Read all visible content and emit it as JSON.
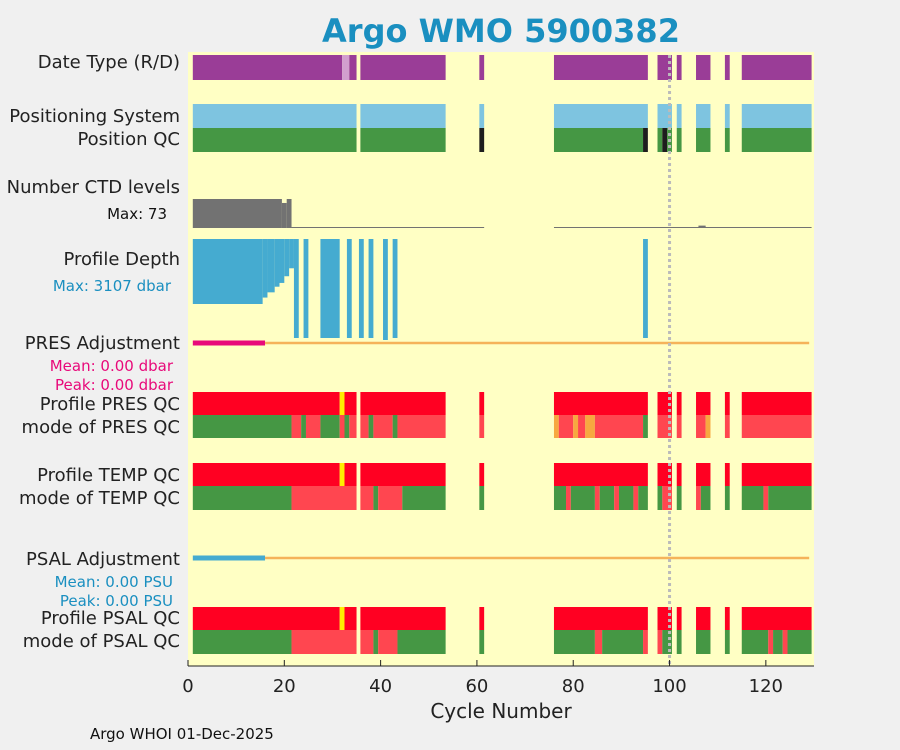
{
  "page_title": "Argo WMO 5900382",
  "footer": "Argo WHOI 01-Dec-2025",
  "colors": {
    "background": "#ffffc4",
    "purple": "#9a3d97",
    "lightpurple": "#d29fce",
    "lightblue": "#7ec4e0",
    "green": "#459744",
    "black": "#1e1e1e",
    "gray": "#727272",
    "blue": "#45abd0",
    "magenta": "#e8097a",
    "orange": "#f5b35a",
    "red": "#ff0022",
    "lightred": "#ff4650",
    "yellow": "#ffee00",
    "amber": "#f7a840",
    "title": "#1a8fc0",
    "dotted": "#bbbbbb"
  },
  "labels": {
    "date_type": "Date Type (R/D)",
    "positioning_system": "Positioning System",
    "position_qc": "Position QC",
    "number_ctd": "Number CTD levels",
    "ctd_max": "Max: 73",
    "profile_depth": "Profile Depth",
    "depth_max": "Max: 3107 dbar",
    "pres_adj": "PRES Adjustment",
    "pres_mean": "Mean: 0.00 dbar",
    "pres_peak": "Peak: 0.00 dbar",
    "profile_pres_qc": "Profile PRES QC",
    "mode_pres_qc": "mode of PRES QC",
    "profile_temp_qc": "Profile TEMP QC",
    "mode_temp_qc": "mode of TEMP QC",
    "psal_adj": "PSAL Adjustment",
    "psal_mean": "Mean: 0.00 PSU",
    "psal_peak": "Peak: 0.00 PSU",
    "profile_psal_qc": "Profile PSAL QC",
    "mode_psal_qc": "mode of PSAL QC"
  },
  "chart_data": {
    "type": "heatmap",
    "title": "Argo WMO 5900382",
    "xlabel": "Cycle Number",
    "xlim": [
      0,
      130
    ],
    "xticks": [
      0,
      20,
      40,
      60,
      80,
      100,
      120
    ],
    "marker_cycle": 100,
    "ctd_levels_max": 73,
    "profile_depth_max_dbar": 3107,
    "pres_adjustment": {
      "mean": 0.0,
      "peak": 0.0,
      "unit": "dbar"
    },
    "psal_adjustment": {
      "mean": 0.0,
      "peak": 0.0,
      "unit": "PSU"
    },
    "segments": {
      "date_type": [
        [
          1,
          32,
          "purple"
        ],
        [
          32,
          33.5,
          "lightpurple"
        ],
        [
          33.5,
          35,
          "purple"
        ],
        [
          35.8,
          53.5,
          "purple"
        ],
        [
          60.5,
          61.5,
          "purple"
        ],
        [
          76,
          95.5,
          "purple"
        ],
        [
          97.5,
          100.5,
          "purple"
        ],
        [
          101.5,
          102.5,
          "purple"
        ],
        [
          105.5,
          108.5,
          "purple"
        ],
        [
          111.5,
          112.5,
          "purple"
        ],
        [
          115,
          129.5,
          "purple"
        ]
      ],
      "positioning_system": [
        [
          1,
          35,
          "lightblue"
        ],
        [
          35.8,
          53.5,
          "lightblue"
        ],
        [
          60.5,
          61.5,
          "lightblue"
        ],
        [
          76,
          95.5,
          "lightblue"
        ],
        [
          97.5,
          100.5,
          "lightblue"
        ],
        [
          101.5,
          102.5,
          "lightblue"
        ],
        [
          105.5,
          108.5,
          "lightblue"
        ],
        [
          111.5,
          112.5,
          "lightblue"
        ],
        [
          115,
          129.5,
          "lightblue"
        ]
      ],
      "position_qc": [
        [
          1,
          35,
          "green"
        ],
        [
          35.8,
          53.5,
          "green"
        ],
        [
          60.5,
          61.5,
          "black"
        ],
        [
          76,
          94.5,
          "green"
        ],
        [
          94.5,
          95.5,
          "black"
        ],
        [
          97.5,
          98.5,
          "green"
        ],
        [
          98.5,
          99.5,
          "black"
        ],
        [
          99.5,
          100.5,
          "green"
        ],
        [
          101.5,
          102.5,
          "green"
        ],
        [
          105.5,
          108.5,
          "green"
        ],
        [
          111.5,
          112.5,
          "green"
        ],
        [
          115,
          129.5,
          "green"
        ]
      ],
      "profile_pres_qc": [
        [
          1,
          31.5,
          "red"
        ],
        [
          31.5,
          32.5,
          "yellow"
        ],
        [
          32.5,
          35,
          "red"
        ],
        [
          35.8,
          53.5,
          "red"
        ],
        [
          60.5,
          61.5,
          "red"
        ],
        [
          76,
          95.5,
          "red"
        ],
        [
          97.5,
          100.5,
          "red"
        ],
        [
          101.5,
          102.5,
          "red"
        ],
        [
          105.5,
          108.5,
          "red"
        ],
        [
          111.5,
          112.5,
          "red"
        ],
        [
          115,
          129.5,
          "red"
        ]
      ],
      "mode_pres_qc": [
        [
          1,
          21.5,
          "green"
        ],
        [
          21.5,
          23.5,
          "lightred"
        ],
        [
          23.5,
          24.5,
          "green"
        ],
        [
          24.5,
          27.5,
          "lightred"
        ],
        [
          27.5,
          31.5,
          "green"
        ],
        [
          31.5,
          32.5,
          "lightred"
        ],
        [
          32.5,
          33.5,
          "green"
        ],
        [
          33.5,
          35,
          "lightred"
        ],
        [
          35.8,
          37.5,
          "lightred"
        ],
        [
          37.5,
          38.5,
          "green"
        ],
        [
          38.5,
          42.5,
          "lightred"
        ],
        [
          42.5,
          43.5,
          "green"
        ],
        [
          43.5,
          53.5,
          "lightred"
        ],
        [
          60.5,
          61.5,
          "lightred"
        ],
        [
          76,
          77,
          "amber"
        ],
        [
          77,
          80,
          "lightred"
        ],
        [
          80,
          81,
          "amber"
        ],
        [
          81,
          82.5,
          "lightred"
        ],
        [
          82.5,
          84.5,
          "amber"
        ],
        [
          84.5,
          94.5,
          "lightred"
        ],
        [
          94.5,
          95.5,
          "green"
        ],
        [
          97.5,
          100.5,
          "lightred"
        ],
        [
          101.5,
          102.5,
          "lightred"
        ],
        [
          105.5,
          107.5,
          "lightred"
        ],
        [
          107.5,
          108.5,
          "amber"
        ],
        [
          111.5,
          112.5,
          "lightred"
        ],
        [
          115,
          129.5,
          "lightred"
        ]
      ],
      "profile_temp_qc": [
        [
          1,
          31.5,
          "red"
        ],
        [
          31.5,
          32.5,
          "yellow"
        ],
        [
          32.5,
          35,
          "red"
        ],
        [
          35.8,
          53.5,
          "red"
        ],
        [
          60.5,
          61.5,
          "red"
        ],
        [
          76,
          95.5,
          "red"
        ],
        [
          97.5,
          100.5,
          "red"
        ],
        [
          101.5,
          102.5,
          "red"
        ],
        [
          105.5,
          108.5,
          "red"
        ],
        [
          111.5,
          112.5,
          "red"
        ],
        [
          115,
          129.5,
          "red"
        ]
      ],
      "mode_temp_qc": [
        [
          1,
          21.5,
          "green"
        ],
        [
          21.5,
          35,
          "lightred"
        ],
        [
          35.8,
          38.5,
          "lightred"
        ],
        [
          38.5,
          39.5,
          "green"
        ],
        [
          39.5,
          44.5,
          "lightred"
        ],
        [
          44.5,
          53.5,
          "green"
        ],
        [
          60.5,
          61.5,
          "green"
        ],
        [
          76,
          78.5,
          "green"
        ],
        [
          78.5,
          79.5,
          "lightred"
        ],
        [
          79.5,
          84.5,
          "green"
        ],
        [
          84.5,
          85.5,
          "lightred"
        ],
        [
          85.5,
          88.5,
          "green"
        ],
        [
          88.5,
          89.5,
          "lightred"
        ],
        [
          89.5,
          92.5,
          "green"
        ],
        [
          92.5,
          93.5,
          "lightred"
        ],
        [
          93.5,
          95.5,
          "green"
        ],
        [
          97.5,
          98.5,
          "green"
        ],
        [
          98.5,
          100.5,
          "lightred"
        ],
        [
          101.5,
          102.5,
          "green"
        ],
        [
          105.5,
          106.5,
          "lightred"
        ],
        [
          106.5,
          108.5,
          "green"
        ],
        [
          111.5,
          112.5,
          "green"
        ],
        [
          115,
          119.5,
          "green"
        ],
        [
          119.5,
          120.5,
          "lightred"
        ],
        [
          120.5,
          129.5,
          "green"
        ]
      ],
      "profile_psal_qc": [
        [
          1,
          31.5,
          "red"
        ],
        [
          31.5,
          32.5,
          "yellow"
        ],
        [
          32.5,
          35,
          "red"
        ],
        [
          35.8,
          53.5,
          "red"
        ],
        [
          60.5,
          61.5,
          "red"
        ],
        [
          76,
          95.5,
          "red"
        ],
        [
          97.5,
          100.5,
          "red"
        ],
        [
          101.5,
          102.5,
          "red"
        ],
        [
          105.5,
          108.5,
          "red"
        ],
        [
          111.5,
          112.5,
          "red"
        ],
        [
          115,
          129.5,
          "red"
        ]
      ],
      "mode_psal_qc": [
        [
          1,
          21.5,
          "green"
        ],
        [
          21.5,
          35,
          "lightred"
        ],
        [
          35.8,
          38.5,
          "lightred"
        ],
        [
          38.5,
          39.5,
          "green"
        ],
        [
          39.5,
          43.5,
          "lightred"
        ],
        [
          43.5,
          53.5,
          "green"
        ],
        [
          60.5,
          61.5,
          "green"
        ],
        [
          76,
          84.5,
          "green"
        ],
        [
          84.5,
          86,
          "lightred"
        ],
        [
          86,
          94.5,
          "green"
        ],
        [
          94.5,
          95.5,
          "lightred"
        ],
        [
          97.5,
          98.5,
          "lightred"
        ],
        [
          98.5,
          100.5,
          "green"
        ],
        [
          101.5,
          102.5,
          "green"
        ],
        [
          105.5,
          108.5,
          "green"
        ],
        [
          111.5,
          112.5,
          "green"
        ],
        [
          115,
          120.5,
          "green"
        ],
        [
          120.5,
          121.5,
          "lightred"
        ],
        [
          121.5,
          123.5,
          "green"
        ],
        [
          123.5,
          124.5,
          "lightred"
        ],
        [
          124.5,
          129.5,
          "green"
        ]
      ]
    },
    "ctd_levels": [
      [
        1,
        19.5,
        73
      ],
      [
        19.5,
        20.5,
        63
      ],
      [
        20.5,
        21.5,
        73
      ],
      [
        21.5,
        61.5,
        2
      ],
      [
        76,
        129.5,
        2
      ],
      [
        106,
        107.5,
        6
      ]
    ],
    "profile_depth_dbar": [
      [
        1,
        15.5,
        3107
      ],
      [
        15.5,
        16.5,
        2800
      ],
      [
        16.5,
        18,
        2550
      ],
      [
        18,
        19,
        2280
      ],
      [
        19,
        20,
        2100
      ],
      [
        20,
        21,
        1780
      ],
      [
        21,
        22,
        1400
      ],
      [
        22,
        23,
        1130
      ],
      [
        24,
        25,
        1000
      ],
      [
        27.5,
        31.5,
        1000
      ],
      [
        33,
        34,
        1000
      ],
      [
        35.5,
        36.5,
        1000
      ],
      [
        37.5,
        38.5,
        1000
      ],
      [
        40.5,
        41.5,
        1000
      ],
      [
        42.5,
        43.5,
        1000
      ],
      [
        94.5,
        95.5,
        1000
      ]
    ],
    "depth_bottoms": {
      "1-15.5": 3107,
      "15.5-16.5": 2800,
      "22-44": 8600,
      "94.5-95.5": 8600
    },
    "adjustment_lines": {
      "pres": [
        [
          1,
          16,
          "magenta"
        ],
        [
          16,
          129,
          "orange"
        ]
      ],
      "psal": [
        [
          1,
          16,
          "blue"
        ],
        [
          16,
          129,
          "orange"
        ]
      ]
    }
  }
}
